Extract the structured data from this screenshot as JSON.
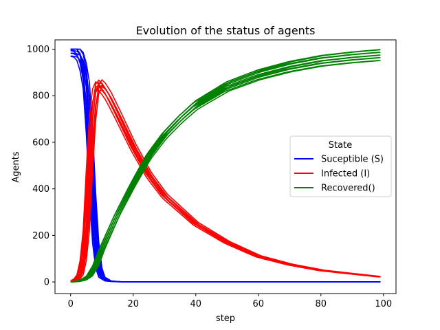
{
  "chart_data": {
    "type": "line",
    "title": "Evolution of the status of agents",
    "xlabel": "step",
    "ylabel": "Agents",
    "xlim": [
      -5,
      104
    ],
    "ylim": [
      -50,
      1040
    ],
    "xticks": [
      0,
      20,
      40,
      60,
      80,
      100
    ],
    "yticks": [
      0,
      200,
      400,
      600,
      800,
      1000
    ],
    "legend": {
      "title": "State",
      "placement": "center-right",
      "entries": [
        "Suceptible (S)",
        "Infected (I)",
        "Recovered()"
      ]
    },
    "runs_per_state": 10,
    "x_range": [
      0,
      99
    ],
    "series": [
      {
        "name": "Suceptible (S)",
        "color": "#0000ff",
        "x": [
          0,
          1,
          2,
          3,
          4,
          5,
          6,
          7,
          8,
          9,
          10,
          12,
          15,
          20,
          40,
          60,
          80,
          99
        ],
        "values": [
          995,
          993,
          990,
          975,
          930,
          850,
          650,
          380,
          170,
          60,
          20,
          4,
          1,
          0,
          0,
          0,
          0,
          0
        ]
      },
      {
        "name": "Infected (I)",
        "color": "#ff0000",
        "x": [
          0,
          1,
          2,
          3,
          4,
          5,
          6,
          7,
          8,
          9,
          10,
          12,
          15,
          20,
          25,
          30,
          40,
          50,
          60,
          70,
          80,
          90,
          99
        ],
        "values": [
          3,
          5,
          12,
          30,
          90,
          220,
          480,
          700,
          820,
          850,
          840,
          800,
          720,
          580,
          460,
          370,
          250,
          170,
          110,
          75,
          50,
          35,
          22
        ]
      },
      {
        "name": "Recovered()",
        "color": "#008000",
        "x": [
          0,
          2,
          4,
          6,
          8,
          10,
          12,
          15,
          20,
          25,
          30,
          35,
          40,
          45,
          50,
          60,
          70,
          80,
          90,
          99
        ],
        "values": [
          0,
          2,
          8,
          25,
          70,
          140,
          200,
          290,
          420,
          540,
          630,
          700,
          760,
          800,
          840,
          890,
          925,
          950,
          965,
          975
        ]
      }
    ]
  }
}
